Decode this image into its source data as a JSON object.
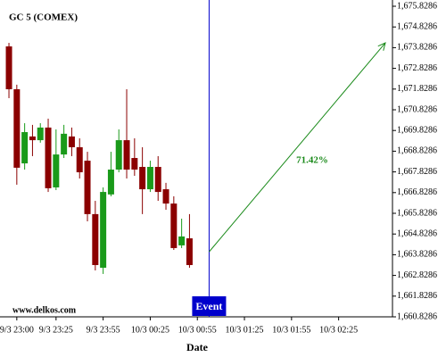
{
  "chart_data": {
    "type": "candlestick",
    "title": "GC 5 (COMEX)",
    "watermark": "www.delkos.com",
    "x_label": "Date",
    "up_color": "#1a9a1a",
    "down_color": "#8b0000",
    "open": [
      1673.89,
      1671.82,
      1668.24,
      1669.54,
      1669.36,
      1669.97,
      1667.08,
      1668.67,
      1669.54,
      1669.02,
      1668.37,
      1665.79,
      1663.2,
      1666.74,
      1667.94,
      1669.36,
      1668.5,
      1668.07,
      1666.99,
      1668.07,
      1666.99,
      1666.3,
      1664.28,
      1664.62
    ],
    "high": [
      1674.06,
      1672.04,
      1670.18,
      1670.1,
      1670.18,
      1670.4,
      1669.88,
      1670.1,
      1669.97,
      1669.45,
      1668.8,
      1666.43,
      1667.08,
      1668.8,
      1669.88,
      1671.82,
      1669.45,
      1669.02,
      1668.37,
      1668.59,
      1667.3,
      1666.65,
      1665.57,
      1665.79
    ],
    "low": [
      1671.39,
      1667.21,
      1667.94,
      1668.59,
      1669.24,
      1666.86,
      1666.95,
      1668.5,
      1668.59,
      1667.51,
      1665.44,
      1663.07,
      1662.9,
      1666.65,
      1667.81,
      1667.51,
      1667.64,
      1665.79,
      1666.86,
      1666.43,
      1666.0,
      1664.06,
      1664.15,
      1663.2
    ],
    "close": [
      1671.82,
      1668.03,
      1669.75,
      1669.36,
      1669.97,
      1667.04,
      1668.67,
      1669.67,
      1669.02,
      1667.81,
      1665.79,
      1663.33,
      1666.86,
      1667.94,
      1669.36,
      1667.94,
      1667.94,
      1666.99,
      1668.07,
      1666.86,
      1666.3,
      1664.15,
      1664.71,
      1663.33
    ],
    "xlim": [
      -1.14,
      48.86
    ],
    "xticks": [
      {
        "value": 1,
        "label": "9/3 23:00"
      },
      {
        "value": 6,
        "label": "9/3 23:25"
      },
      {
        "value": 12,
        "label": "9/3 23:55"
      },
      {
        "value": 18,
        "label": "10/3 00:25"
      },
      {
        "value": 24,
        "label": "10/3 00:55"
      },
      {
        "value": 30,
        "label": "10/3 01:25"
      },
      {
        "value": 36,
        "label": "10/3 01:55"
      },
      {
        "value": 42,
        "label": "10/3 02:25"
      }
    ],
    "ylim": [
      1660.8286,
      1675.8286
    ],
    "yticks": [
      {
        "value": 1660.8286,
        "label": "1,660.8286"
      },
      {
        "value": 1661.8286,
        "label": "1,661.8286"
      },
      {
        "value": 1662.8286,
        "label": "1,662.8286"
      },
      {
        "value": 1663.8286,
        "label": "1,663.8286"
      },
      {
        "value": 1664.8286,
        "label": "1,664.8286"
      },
      {
        "value": 1665.8286,
        "label": "1,665.8286"
      },
      {
        "value": 1666.8286,
        "label": "1,666.8286"
      },
      {
        "value": 1667.8286,
        "label": "1,667.8286"
      },
      {
        "value": 1668.8286,
        "label": "1,668.8286"
      },
      {
        "value": 1669.8286,
        "label": "1,669.8286"
      },
      {
        "value": 1670.8286,
        "label": "1,670.8286"
      },
      {
        "value": 1671.8286,
        "label": "1,671.8286"
      },
      {
        "value": 1672.8286,
        "label": "1,672.8286"
      },
      {
        "value": 1673.8286,
        "label": "1,673.8286"
      },
      {
        "value": 1674.8286,
        "label": "1,674.8286"
      },
      {
        "value": 1675.8286,
        "label": "1,675.8286"
      }
    ],
    "event": {
      "label": "Event",
      "x": 25.5,
      "color": "#0000cc"
    },
    "arrow": {
      "x": [
        25.5,
        47.95
      ],
      "y": [
        1663.97,
        1674.06
      ],
      "label": "71.42%",
      "color": "#1a8a1a"
    }
  }
}
